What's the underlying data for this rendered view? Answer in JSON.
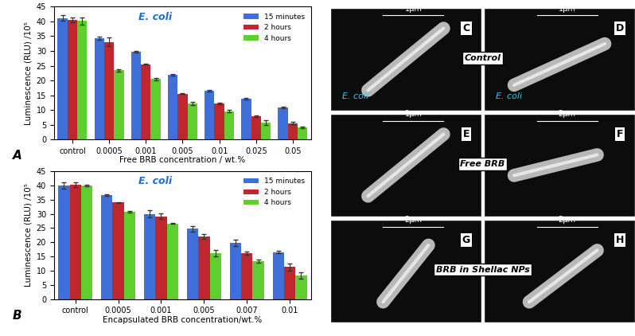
{
  "chart_data": [
    {
      "type": "bar",
      "panel": "A",
      "annotation": "E. coli",
      "y_label": "Luminescence (RLU) /10⁵",
      "x_label": "Free BRB concentration / wt.%",
      "categories": [
        "control",
        "0.0005",
        "0.001",
        "0.005",
        "0.01",
        "0.025",
        "0.05"
      ],
      "series": [
        {
          "name": "15 minutes",
          "color": "#3f6fd8",
          "values": [
            41.2,
            34.3,
            29.8,
            22.0,
            16.5,
            13.8,
            10.8
          ],
          "errors": [
            1.0,
            0.5,
            0.3,
            0.3,
            0.3,
            0.4,
            0.3
          ]
        },
        {
          "name": "2 hours",
          "color": "#c0262d",
          "values": [
            40.5,
            33.0,
            25.5,
            15.5,
            12.2,
            7.8,
            5.5
          ],
          "errors": [
            0.8,
            1.5,
            0.2,
            0.2,
            0.2,
            0.2,
            0.4
          ]
        },
        {
          "name": "4 hours",
          "color": "#5fcf2f",
          "values": [
            40.2,
            23.5,
            20.5,
            12.2,
            9.6,
            5.8,
            4.0
          ],
          "errors": [
            1.2,
            0.4,
            0.4,
            0.6,
            0.4,
            0.8,
            0.3
          ]
        }
      ],
      "ylim": [
        0,
        45
      ],
      "yticks": [
        0,
        5,
        10,
        15,
        20,
        25,
        30,
        35,
        40,
        45
      ],
      "legend": "upper right"
    },
    {
      "type": "bar",
      "panel": "B",
      "annotation": "E. coli",
      "y_label": "Luminescence (RLU) /10⁵",
      "x_label": "Encapsulated BRB concentration/wt.%",
      "categories": [
        "control",
        "0.0005",
        "0.001",
        "0.005",
        "0.007",
        "0.01"
      ],
      "series": [
        {
          "name": "15 minutes",
          "color": "#3f6fd8",
          "values": [
            40.0,
            36.6,
            30.0,
            24.8,
            19.8,
            16.5
          ],
          "errors": [
            1.2,
            0.3,
            1.2,
            1.0,
            1.2,
            0.4
          ]
        },
        {
          "name": "2 hours",
          "color": "#c0262d",
          "values": [
            40.3,
            34.0,
            29.2,
            22.0,
            16.2,
            11.3
          ],
          "errors": [
            0.8,
            0.2,
            1.0,
            0.8,
            0.5,
            1.2
          ]
        },
        {
          "name": "4 hours",
          "color": "#5fcf2f",
          "values": [
            39.9,
            30.8,
            26.6,
            16.2,
            13.3,
            8.3
          ],
          "errors": [
            0.3,
            0.2,
            0.1,
            1.2,
            0.6,
            1.2
          ]
        }
      ],
      "ylim": [
        0,
        45
      ],
      "yticks": [
        0,
        5,
        10,
        15,
        20,
        25,
        30,
        35,
        40,
        45
      ],
      "legend": "upper right"
    }
  ],
  "image_panels": {
    "panels": [
      {
        "label": "C",
        "scale_bar": "1µm",
        "organism": "E. coli"
      },
      {
        "label": "D",
        "scale_bar": "1µm",
        "organism": "E. coli"
      },
      {
        "label": "E",
        "scale_bar": "1µm"
      },
      {
        "label": "F",
        "scale_bar": "2µm"
      },
      {
        "label": "G",
        "scale_bar": "2µm"
      },
      {
        "label": "H",
        "scale_bar": "2µm"
      }
    ],
    "row_labels": [
      "Control",
      "Free BRB",
      "BRB in Shellac NPs"
    ]
  }
}
